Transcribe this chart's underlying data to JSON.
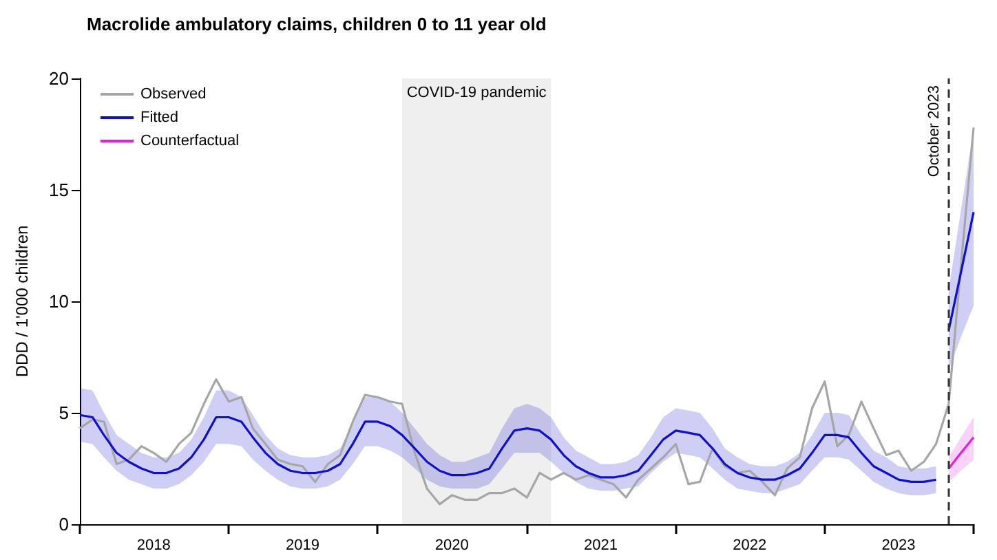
{
  "chart_data": {
    "type": "line",
    "title": "Macrolide ambulatory claims, children 0 to 11 year old",
    "ylabel": "DDD / 1'000 children",
    "x": [
      "2018-01",
      "2018-02",
      "2018-03",
      "2018-04",
      "2018-05",
      "2018-06",
      "2018-07",
      "2018-08",
      "2018-09",
      "2018-10",
      "2018-11",
      "2018-12",
      "2019-01",
      "2019-02",
      "2019-03",
      "2019-04",
      "2019-05",
      "2019-06",
      "2019-07",
      "2019-08",
      "2019-09",
      "2019-10",
      "2019-11",
      "2019-12",
      "2020-01",
      "2020-02",
      "2020-03",
      "2020-04",
      "2020-05",
      "2020-06",
      "2020-07",
      "2020-08",
      "2020-09",
      "2020-10",
      "2020-11",
      "2020-12",
      "2021-01",
      "2021-02",
      "2021-03",
      "2021-04",
      "2021-05",
      "2021-06",
      "2021-07",
      "2021-08",
      "2021-09",
      "2021-10",
      "2021-11",
      "2021-12",
      "2022-01",
      "2022-02",
      "2022-03",
      "2022-04",
      "2022-05",
      "2022-06",
      "2022-07",
      "2022-08",
      "2022-09",
      "2022-10",
      "2022-11",
      "2022-12",
      "2023-01",
      "2023-02",
      "2023-03",
      "2023-04",
      "2023-05",
      "2023-06",
      "2023-07",
      "2023-08",
      "2023-09",
      "2023-10",
      "2023-11",
      "2023-12",
      "2024-01"
    ],
    "series": [
      {
        "name": "Observed",
        "color": "#a6a6a6",
        "values": [
          4.3,
          4.7,
          4.6,
          2.7,
          2.9,
          3.5,
          3.2,
          2.8,
          3.6,
          4.1,
          5.4,
          6.5,
          5.5,
          5.7,
          4.3,
          3.6,
          2.9,
          2.7,
          2.6,
          1.9,
          2.7,
          3.1,
          4.6,
          5.8,
          5.7,
          5.5,
          5.4,
          3.2,
          1.6,
          0.9,
          1.3,
          1.1,
          1.1,
          1.4,
          1.4,
          1.6,
          1.2,
          2.3,
          2.0,
          2.3,
          2.0,
          2.2,
          2.0,
          1.8,
          1.2,
          2.0,
          2.5,
          3.0,
          3.6,
          1.8,
          1.9,
          3.4,
          2.6,
          2.3,
          2.4,
          1.9,
          1.3,
          2.5,
          3.0,
          5.2,
          6.4,
          3.5,
          4.0,
          5.5,
          4.3,
          3.1,
          3.3,
          2.4,
          2.8,
          3.6,
          5.4,
          11.6,
          17.8
        ]
      },
      {
        "name": "Fitted",
        "color": "#1010cc",
        "values": [
          4.9,
          4.8,
          4.0,
          3.2,
          2.8,
          2.5,
          2.3,
          2.3,
          2.5,
          3.0,
          3.8,
          4.8,
          4.8,
          4.6,
          3.9,
          3.2,
          2.7,
          2.4,
          2.3,
          2.3,
          2.4,
          2.7,
          3.6,
          4.6,
          4.6,
          4.4,
          4.0,
          3.4,
          2.8,
          2.4,
          2.2,
          2.2,
          2.3,
          2.5,
          3.4,
          4.2,
          4.3,
          4.2,
          3.8,
          3.1,
          2.6,
          2.3,
          2.1,
          2.1,
          2.2,
          2.4,
          3.1,
          3.8,
          4.2,
          4.1,
          4.0,
          3.4,
          2.7,
          2.3,
          2.1,
          2.0,
          2.0,
          2.2,
          2.5,
          3.2,
          4.0,
          4.0,
          3.9,
          3.2,
          2.6,
          2.3,
          2.0,
          1.9,
          1.9,
          2.0,
          null,
          null,
          null
        ],
        "lower": [
          3.7,
          3.6,
          3.0,
          2.4,
          2.0,
          1.8,
          1.6,
          1.6,
          1.8,
          2.2,
          2.8,
          3.6,
          3.6,
          3.5,
          2.9,
          2.4,
          2.0,
          1.7,
          1.6,
          1.6,
          1.7,
          2.0,
          2.7,
          3.5,
          3.5,
          3.3,
          3.0,
          2.5,
          2.0,
          1.7,
          1.6,
          1.6,
          1.6,
          1.8,
          2.5,
          3.2,
          3.2,
          3.2,
          2.8,
          2.3,
          1.9,
          1.6,
          1.5,
          1.5,
          1.6,
          1.7,
          2.3,
          2.8,
          3.2,
          3.1,
          3.0,
          2.5,
          2.0,
          1.6,
          1.5,
          1.4,
          1.4,
          1.6,
          1.8,
          2.4,
          3.0,
          3.0,
          2.9,
          2.4,
          1.9,
          1.6,
          1.4,
          1.3,
          1.3,
          1.4,
          null,
          null,
          null
        ],
        "upper": [
          6.1,
          6.0,
          5.0,
          4.0,
          3.6,
          3.2,
          3.0,
          3.0,
          3.2,
          3.8,
          4.8,
          6.0,
          6.0,
          5.7,
          4.9,
          4.0,
          3.4,
          3.1,
          3.0,
          3.0,
          3.1,
          3.4,
          4.5,
          5.7,
          5.7,
          5.5,
          5.0,
          4.3,
          3.6,
          3.1,
          2.8,
          2.8,
          3.0,
          3.2,
          4.3,
          5.2,
          5.4,
          5.2,
          4.8,
          3.9,
          3.3,
          3.0,
          2.7,
          2.7,
          2.8,
          3.1,
          3.9,
          4.8,
          5.2,
          5.1,
          5.0,
          4.3,
          3.4,
          3.0,
          2.7,
          2.6,
          2.6,
          2.8,
          3.2,
          4.0,
          5.0,
          5.0,
          4.9,
          4.0,
          3.3,
          3.0,
          2.6,
          2.5,
          2.5,
          2.6,
          null,
          null,
          null
        ]
      },
      {
        "color": "#1010cc",
        "x": [
          "2023-11",
          "2023-12",
          "2024-01"
        ],
        "values": [
          8.7,
          11.3,
          14.0
        ],
        "lower": [
          6.9,
          8.4,
          9.8
        ],
        "upper": [
          10.5,
          14.1,
          17.7
        ]
      },
      {
        "name": "Counterfactual",
        "color": "#e020e0",
        "x": [
          "2023-11",
          "2023-12",
          "2024-01"
        ],
        "values": [
          2.5,
          3.2,
          3.9
        ],
        "lower": [
          1.9,
          2.4,
          2.9
        ],
        "upper": [
          3.0,
          3.9,
          4.8
        ]
      }
    ],
    "xlim": [
      "2018-01",
      "2024-01"
    ],
    "xticks": [
      {
        "value": "2018-01",
        "label": null
      },
      {
        "value": "2018-07",
        "label": "2018"
      },
      {
        "value": "2019-01",
        "label": null
      },
      {
        "value": "2019-07",
        "label": "2019"
      },
      {
        "value": "2020-01",
        "label": null
      },
      {
        "value": "2020-07",
        "label": "2020"
      },
      {
        "value": "2021-01",
        "label": null
      },
      {
        "value": "2021-07",
        "label": "2021"
      },
      {
        "value": "2022-01",
        "label": null
      },
      {
        "value": "2022-07",
        "label": "2022"
      },
      {
        "value": "2023-01",
        "label": null
      },
      {
        "value": "2023-07",
        "label": "2023"
      },
      {
        "value": "2024-01",
        "label": null
      }
    ],
    "ylim": [
      0,
      20
    ],
    "yticks": [
      0,
      5,
      10,
      15,
      20
    ],
    "bands": [
      {
        "axis": "x",
        "from": "2020-03",
        "to": "2021-03",
        "label": "COVID-19 pandemic",
        "color": "#efefef"
      }
    ],
    "ref_lines": [
      {
        "axis": "x",
        "value": "2023-11",
        "label": "October 2023",
        "color": "#333333",
        "line_style": "dashed"
      }
    ],
    "marker": "none",
    "grid": false,
    "legend": "top left"
  }
}
